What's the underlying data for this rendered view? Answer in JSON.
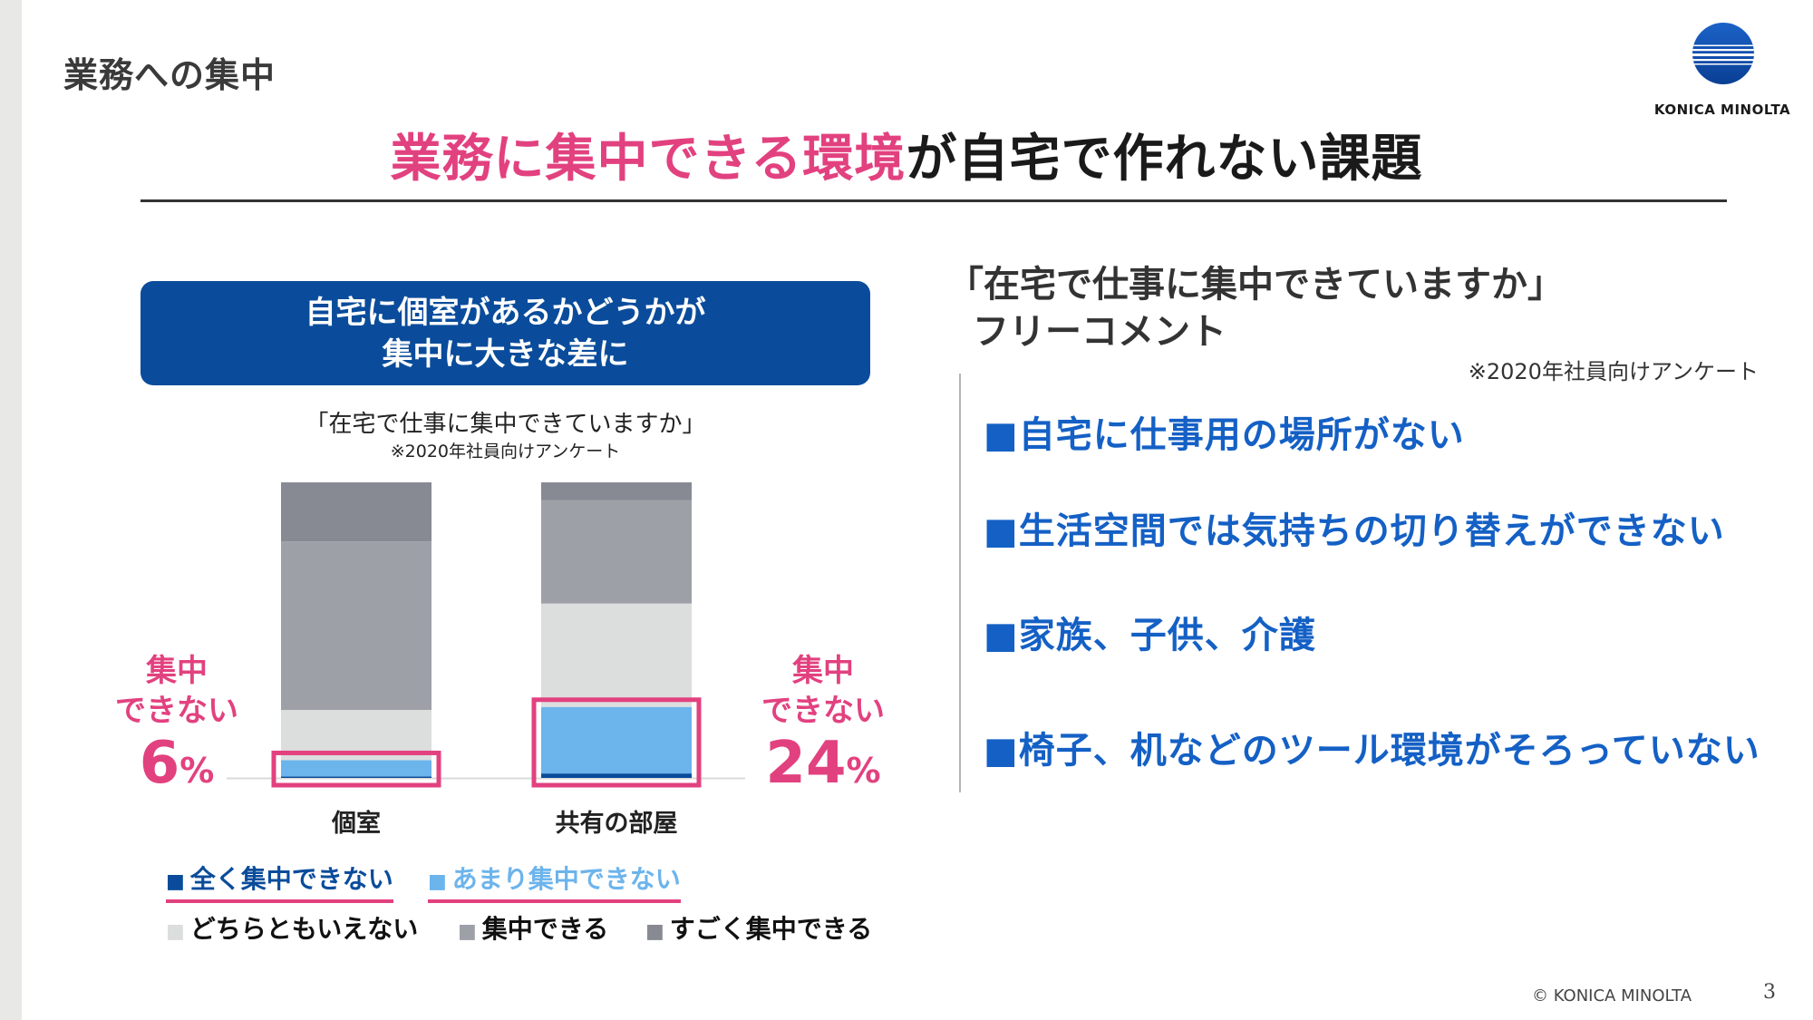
{
  "slide": {
    "section_label": "業務への集中",
    "logo_text": "KONICA MINOLTA",
    "title_pink": "業務に集中できる環境",
    "title_rest": "が自宅で作れない課題",
    "banner_line1": "自宅に個室があるかどうかが",
    "banner_line2": "集中に大きな差に",
    "chart_question": "「在宅で仕事に集中できていますか」",
    "chart_note": "※2020年社員向けアンケート",
    "callout_left": {
      "line1": "集中",
      "line2": "できない",
      "value": "6",
      "unit": "%"
    },
    "callout_right": {
      "line1": "集中",
      "line2": "できない",
      "value": "24",
      "unit": "%"
    },
    "right_title_line1": "「在宅で仕事に集中できていますか」",
    "right_title_line2": "フリーコメント",
    "right_note": "※2020年社員向けアンケート",
    "comments": [
      "■自宅に仕事用の場所がない",
      "■生活空間では気持ちの切り替えができない",
      "■家族、子供、介護",
      "■椅子、机などのツール環境がそろっていない"
    ],
    "copyright": "© KONICA MINOLTA",
    "page_number": "3"
  },
  "legend": [
    {
      "marker": "■",
      "label": "全く集中できない",
      "color": "#0a4c9b",
      "underline": true
    },
    {
      "marker": "■",
      "label": "あまり集中できない",
      "color": "#6cb4ec",
      "underline": true
    },
    {
      "marker": "■",
      "label": "どちらともいえない",
      "color": "#dcdddd",
      "underline": false
    },
    {
      "marker": "■",
      "label": "集中できる",
      "color": "#9ea0a8",
      "underline": false
    },
    {
      "marker": "■",
      "label": "すごく集中できる",
      "color": "#878a93",
      "underline": false
    }
  ],
  "chart_data": {
    "type": "bar",
    "stacked": true,
    "percent": true,
    "categories": [
      "個室",
      "共有の部屋"
    ],
    "series": [
      {
        "name": "全く集中できない",
        "color": "#0a4c9b",
        "values": [
          0.5,
          1.5
        ]
      },
      {
        "name": "あまり集中できない",
        "color": "#6cb4ec",
        "values": [
          5.5,
          22.5
        ]
      },
      {
        "name": "どちらともいえない",
        "color": "#dcdddd",
        "values": [
          17,
          35
        ]
      },
      {
        "name": "集中できる",
        "color": "#9ea0a8",
        "values": [
          57,
          35
        ]
      },
      {
        "name": "すごく集中できる",
        "color": "#878a93",
        "values": [
          20,
          6
        ]
      }
    ],
    "highlight_series": [
      "全く集中できない",
      "あまり集中できない"
    ],
    "ylim": [
      0,
      100
    ],
    "grid": false,
    "legend_position": "bottom",
    "highlight_color": "#e2417f"
  }
}
